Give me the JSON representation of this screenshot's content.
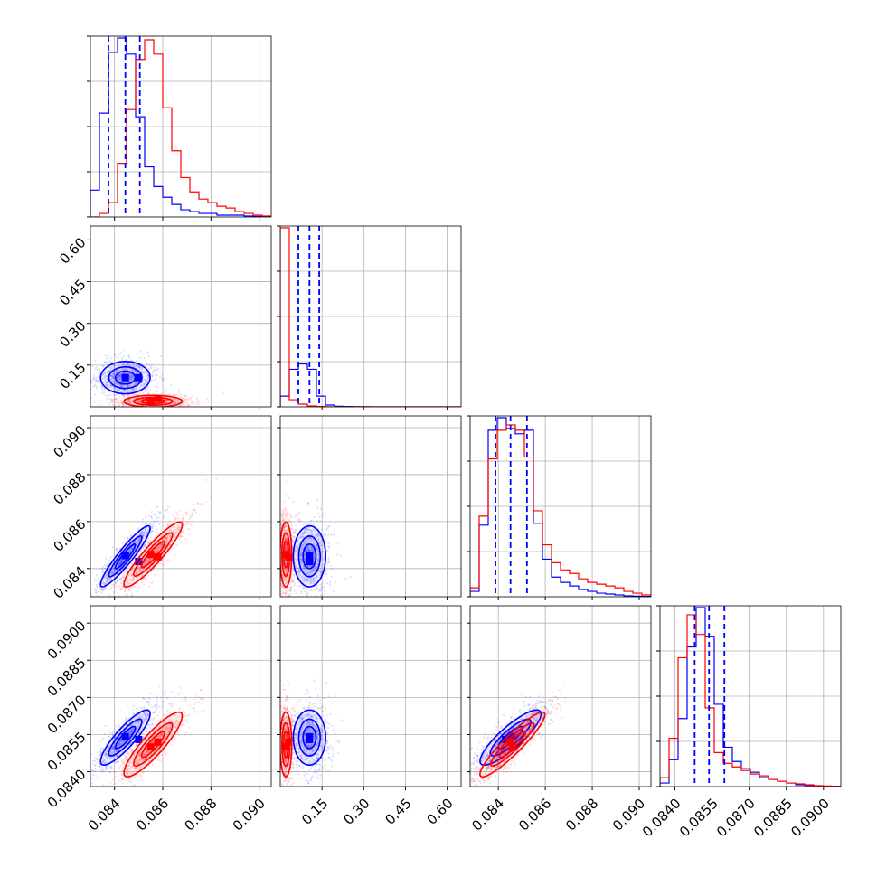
{
  "colors": {
    "series_a": "#0000ff",
    "series_b": "#ff0000",
    "grid": "#b0b0b0",
    "frame": "#000000"
  },
  "chart_data": {
    "type": "corner",
    "n_params": 4,
    "grid": true,
    "series": [
      {
        "color": "#0000ff",
        "medians": [
          0.08445,
          0.105,
          0.08452,
          0.08538
        ],
        "quantiles": [
          [
            0.08375,
            0.08445,
            0.08505
          ],
          [
            0.065,
            0.105,
            0.14
          ],
          [
            0.08388,
            0.08452,
            0.08522
          ],
          [
            0.0848,
            0.08538,
            0.086
          ]
        ],
        "peaks": [
          [
            0.08445,
            0.105,
            0.08455,
            0.08541
          ],
          [
            0.085,
            0.105,
            0.0843,
            0.0853
          ]
        ],
        "cov": [
          [
            4.7e-07,
            2e-07,
            5.5e-07,
            4.4e-07
          ],
          [
            2e-07,
            0.0015,
            2e-07,
            2e-07
          ],
          [
            5.5e-07,
            2e-07,
            7.5e-07,
            5.5e-07
          ],
          [
            4.4e-07,
            2e-07,
            5.5e-07,
            5.5e-07
          ]
        ]
      },
      {
        "color": "#ff0000",
        "medians": [
          0.0856,
          0.02,
          0.0846,
          0.0851
        ],
        "peaks": [
          [
            0.0855,
            0.02,
            0.0846,
            0.085
          ],
          [
            0.0858,
            0.03,
            0.0845,
            0.0852
          ]
        ],
        "cov": [
          [
            6.5e-07,
            0,
            6.8e-07,
            6.2e-07
          ],
          [
            0,
            0.0002,
            0,
            0
          ],
          [
            6.8e-07,
            0,
            8.5e-07,
            7.4e-07
          ],
          [
            6.2e-07,
            0,
            7.4e-07,
            7.6e-07
          ]
        ]
      }
    ],
    "histograms": [
      {
        "range": [
          0.083,
          0.0905
        ],
        "blue": [
          0.15,
          0.58,
          0.92,
          1.0,
          0.91,
          0.56,
          0.28,
          0.17,
          0.11,
          0.07,
          0.04,
          0.03,
          0.02,
          0.02,
          0.01,
          0.01,
          0.01,
          0.005,
          0.003,
          0.002
        ],
        "red": [
          0.0,
          0.02,
          0.08,
          0.3,
          0.6,
          0.88,
          0.99,
          0.91,
          0.61,
          0.37,
          0.22,
          0.14,
          0.1,
          0.08,
          0.06,
          0.05,
          0.03,
          0.02,
          0.01,
          0.005
        ]
      },
      {
        "range": [
          0.0,
          0.65
        ],
        "blue": [
          0.06,
          0.21,
          0.24,
          0.21,
          0.06,
          0.01,
          0.003,
          0.002,
          0.001,
          0.001,
          0.0,
          0.0,
          0.0,
          0.0,
          0.0,
          0.0,
          0.0,
          0.0,
          0.0,
          0.0
        ],
        "red": [
          1.0,
          0.04,
          0.015,
          0.005,
          0.002,
          0.0,
          0.0,
          0.0,
          0.0,
          0.0,
          0.0,
          0.0,
          0.0,
          0.0,
          0.0,
          0.0,
          0.0,
          0.0,
          0.0,
          0.0
        ]
      },
      {
        "range": [
          0.0828,
          0.0905
        ],
        "blue": [
          0.03,
          0.4,
          0.93,
          1.0,
          0.94,
          0.91,
          0.93,
          0.41,
          0.21,
          0.11,
          0.08,
          0.06,
          0.04,
          0.03,
          0.02,
          0.015,
          0.01,
          0.005,
          0.003,
          0.002
        ],
        "red": [
          0.05,
          0.45,
          0.77,
          0.93,
          0.96,
          0.93,
          0.78,
          0.48,
          0.29,
          0.19,
          0.15,
          0.13,
          0.1,
          0.08,
          0.07,
          0.06,
          0.05,
          0.03,
          0.02,
          0.01
        ]
      },
      {
        "range": [
          0.083,
          0.0906
        ],
        "blue": [
          0.02,
          0.15,
          0.38,
          0.78,
          1.0,
          0.84,
          0.46,
          0.22,
          0.14,
          0.1,
          0.08,
          0.05,
          0.04,
          0.03,
          0.02,
          0.01,
          0.006,
          0.004,
          0.002,
          0.001
        ],
        "red": [
          0.05,
          0.27,
          0.72,
          0.96,
          0.85,
          0.44,
          0.19,
          0.13,
          0.11,
          0.09,
          0.07,
          0.06,
          0.04,
          0.03,
          0.02,
          0.015,
          0.01,
          0.005,
          0.003,
          0.002
        ]
      }
    ],
    "axes": [
      {
        "range": [
          0.083,
          0.0905
        ],
        "ticks": [
          0.084,
          0.086,
          0.088,
          0.09
        ],
        "tick_labels": [
          "0.084",
          "0.086",
          "0.088",
          "0.090"
        ]
      },
      {
        "range": [
          0.0,
          0.65
        ],
        "ticks": [
          0.15,
          0.3,
          0.45,
          0.6
        ],
        "tick_labels": [
          "0.15",
          "0.30",
          "0.45",
          "0.60"
        ]
      },
      {
        "range": [
          0.0828,
          0.0905
        ],
        "ticks": [
          0.084,
          0.086,
          0.088,
          0.09
        ],
        "tick_labels": [
          "0.084",
          "0.086",
          "0.088",
          "0.090"
        ]
      },
      {
        "range": [
          0.0834,
          0.0907
        ],
        "ticks": [
          0.084,
          0.0855,
          0.087,
          0.0885,
          0.09
        ],
        "tick_labels": [
          "0.0840",
          "0.0855",
          "0.0870",
          "0.0885",
          "0.0900"
        ]
      }
    ]
  }
}
